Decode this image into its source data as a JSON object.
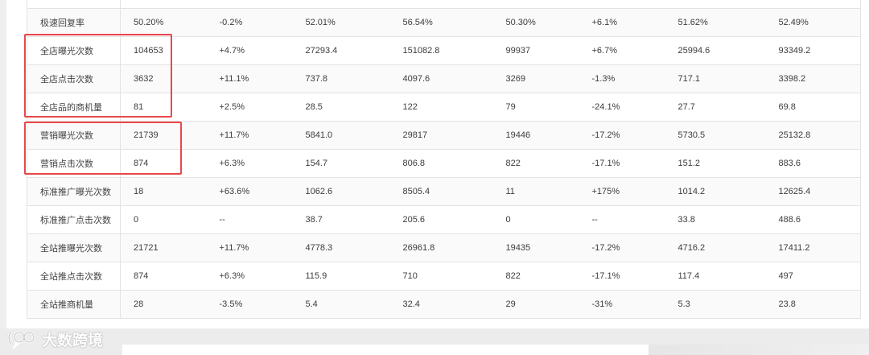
{
  "table": {
    "rows": [
      {
        "name": "",
        "cells": [
          "",
          "",
          "",
          "",
          "",
          "",
          "",
          ""
        ]
      },
      {
        "name": "极速回复率",
        "cells": [
          "50.20%",
          "-0.2%",
          "52.01%",
          "56.54%",
          "50.30%",
          "+6.1%",
          "51.62%",
          "52.49%"
        ]
      },
      {
        "name": "全店曝光次数",
        "cells": [
          "104653",
          "+4.7%",
          "27293.4",
          "151082.8",
          "99937",
          "+6.7%",
          "25994.6",
          "93349.2"
        ]
      },
      {
        "name": "全店点击次数",
        "cells": [
          "3632",
          "+11.1%",
          "737.8",
          "4097.6",
          "3269",
          "-1.3%",
          "717.1",
          "3398.2"
        ]
      },
      {
        "name": "全店品的商机量",
        "cells": [
          "81",
          "+2.5%",
          "28.5",
          "122",
          "79",
          "-24.1%",
          "27.7",
          "69.8"
        ]
      },
      {
        "name": "营销曝光次数",
        "cells": [
          "21739",
          "+11.7%",
          "5841.0",
          "29817",
          "19446",
          "-17.2%",
          "5730.5",
          "25132.8"
        ]
      },
      {
        "name": "营销点击次数",
        "cells": [
          "874",
          "+6.3%",
          "154.7",
          "806.8",
          "822",
          "-17.1%",
          "151.2",
          "883.6"
        ]
      },
      {
        "name": "标准推广曝光次数",
        "cells": [
          "18",
          "+63.6%",
          "1062.6",
          "8505.4",
          "11",
          "+175%",
          "1014.2",
          "12625.4"
        ]
      },
      {
        "name": "标准推广点击次数",
        "cells": [
          "0",
          "--",
          "38.7",
          "205.6",
          "0",
          "--",
          "33.8",
          "488.6"
        ]
      },
      {
        "name": "全站推曝光次数",
        "cells": [
          "21721",
          "+11.7%",
          "4778.3",
          "26961.8",
          "19435",
          "-17.2%",
          "4716.2",
          "17411.2"
        ]
      },
      {
        "name": "全站推点击次数",
        "cells": [
          "874",
          "+6.3%",
          "115.9",
          "710",
          "822",
          "-17.1%",
          "117.4",
          "497"
        ]
      },
      {
        "name": "全站推商机量",
        "cells": [
          "28",
          "-3.5%",
          "5.4",
          "32.4",
          "29",
          "-31%",
          "5.3",
          "23.8"
        ]
      }
    ]
  },
  "watermark": {
    "text": "大数跨境",
    "icon": "speech-bubble-logo-icon"
  },
  "colors": {
    "highlight": "#e8474b",
    "border": "#e3e3e3"
  }
}
